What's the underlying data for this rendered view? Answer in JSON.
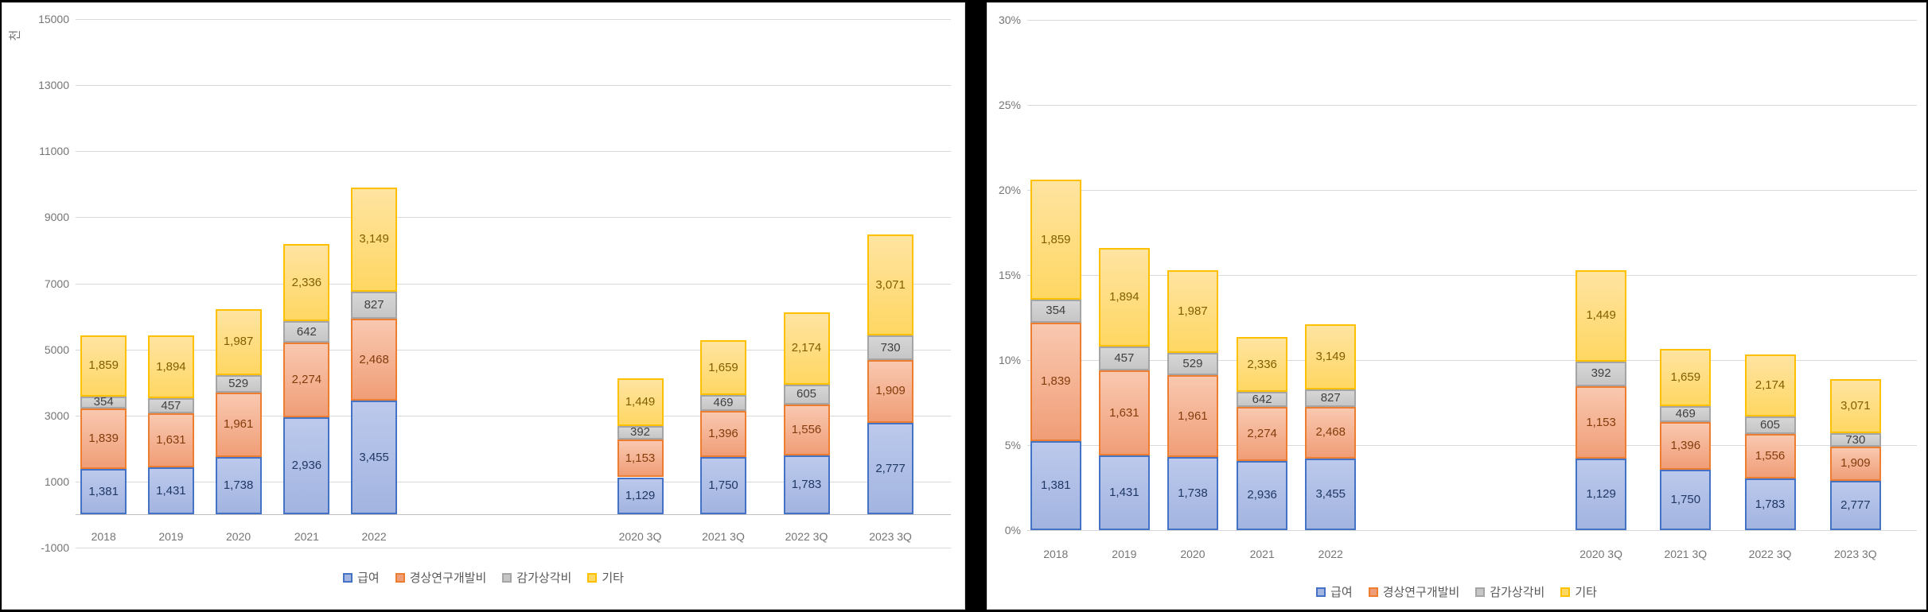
{
  "background_color": "#FFFFFF",
  "divider_color": "#000000",
  "gridline_color": "#D9D9D9",
  "axis_text_color": "#757575",
  "legend_text_color": "#595959",
  "chart_data": [
    {
      "type": "bar",
      "stacked": true,
      "title": "",
      "y_axis_title": "천",
      "y_ticks": [
        "15000",
        "13000",
        "11000",
        "9000",
        "7000",
        "5000",
        "3000",
        "1000",
        "-1000"
      ],
      "ylim": [
        -1000,
        15000
      ],
      "y_step": 2000,
      "grid": true,
      "legend_position": "bottom",
      "categories": [
        "2018",
        "2019",
        "2020",
        "2021",
        "2022",
        "2020 3Q",
        "2021 3Q",
        "2022 3Q",
        "2023 3Q"
      ],
      "series": [
        {
          "name": "급여",
          "border": "#4472C4",
          "fill_top": "#BCC9EC",
          "fill_bottom": "#A2B4E0",
          "label_color": "#203864",
          "values": [
            1381,
            1431,
            1738,
            2936,
            3455,
            1129,
            1750,
            1783,
            2777
          ],
          "labels": [
            "1,381",
            "1,431",
            "1,738",
            "2,936",
            "3,455",
            "1,129",
            "1,750",
            "1,783",
            "2,777"
          ]
        },
        {
          "name": "경상연구개발비",
          "border": "#ED7D31",
          "fill_top": "#F9C8B0",
          "fill_bottom": "#F09E77",
          "label_color": "#843C0C",
          "values": [
            1839,
            1631,
            1961,
            2274,
            2468,
            1153,
            1396,
            1556,
            1909
          ],
          "labels": [
            "1,839",
            "1,631",
            "1,961",
            "2,274",
            "2,468",
            "1,153",
            "1,396",
            "1,556",
            "1,909"
          ]
        },
        {
          "name": "감가상각비",
          "border": "#A5A5A5",
          "fill_top": "#D6D6D6",
          "fill_bottom": "#C6C6C6",
          "label_color": "#404040",
          "values": [
            354,
            457,
            529,
            642,
            827,
            392,
            469,
            605,
            730
          ],
          "labels": [
            "354",
            "457",
            "529",
            "642",
            "827",
            "392",
            "469",
            "605",
            "730"
          ]
        },
        {
          "name": "기타",
          "border": "#FFC000",
          "fill_top": "#FFE4A1",
          "fill_bottom": "#FFD763",
          "label_color": "#7F6000",
          "values": [
            1859,
            1894,
            1987,
            2336,
            3149,
            1449,
            1659,
            2174,
            3071
          ],
          "labels": [
            "1,859",
            "1,894",
            "1,987",
            "2,336",
            "3,149",
            "1,449",
            "1,659",
            "2,174",
            "3,071"
          ]
        }
      ]
    },
    {
      "type": "bar",
      "stacked": true,
      "title": "",
      "y_axis_title": "",
      "y_ticks": [
        "30%",
        "25%",
        "20%",
        "15%",
        "10%",
        "5%",
        "0%"
      ],
      "ylim": [
        0,
        30
      ],
      "y_step": 5,
      "grid": true,
      "legend_position": "bottom",
      "categories": [
        "2018",
        "2019",
        "2020",
        "2021",
        "2022",
        "2020 3Q",
        "2021 3Q",
        "2022 3Q",
        "2023 3Q"
      ],
      "series": [
        {
          "name": "급여",
          "border": "#4472C4",
          "fill_top": "#BCC9EC",
          "fill_bottom": "#A2B4E0",
          "label_color": "#203864",
          "values": [
            5.24,
            4.39,
            4.28,
            4.07,
            4.22,
            4.19,
            3.53,
            3.02,
            2.91
          ],
          "labels": [
            "1,381",
            "1,431",
            "1,738",
            "2,936",
            "3,455",
            "1,129",
            "1,750",
            "1,783",
            "2,777"
          ]
        },
        {
          "name": "경상연구개발비",
          "border": "#ED7D31",
          "fill_top": "#F9C8B0",
          "fill_bottom": "#F09E77",
          "label_color": "#843C0C",
          "values": [
            6.97,
            5.0,
            4.83,
            3.15,
            3.02,
            4.28,
            2.82,
            2.63,
            2.0
          ],
          "labels": [
            "1,839",
            "1,631",
            "1,961",
            "2,274",
            "2,468",
            "1,153",
            "1,396",
            "1,556",
            "1,909"
          ]
        },
        {
          "name": "감가상각비",
          "border": "#A5A5A5",
          "fill_top": "#D6D6D6",
          "fill_bottom": "#C6C6C6",
          "label_color": "#404040",
          "values": [
            1.34,
            1.4,
            1.3,
            0.89,
            1.01,
            1.45,
            0.95,
            1.02,
            0.77
          ],
          "labels": [
            "354",
            "457",
            "529",
            "642",
            "827",
            "392",
            "469",
            "605",
            "730"
          ]
        },
        {
          "name": "기타",
          "border": "#FFC000",
          "fill_top": "#FFE4A1",
          "fill_bottom": "#FFD763",
          "label_color": "#7F6000",
          "values": [
            7.05,
            5.81,
            4.89,
            3.24,
            3.85,
            5.38,
            3.35,
            3.68,
            3.22
          ],
          "labels": [
            "1,859",
            "1,894",
            "1,987",
            "2,336",
            "3,149",
            "1,449",
            "1,659",
            "2,174",
            "3,071"
          ]
        }
      ]
    }
  ]
}
